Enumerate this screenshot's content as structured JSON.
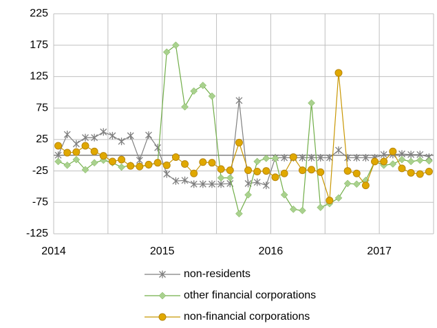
{
  "chart_data": {
    "type": "line",
    "categories": [
      "2014",
      null,
      null,
      null,
      null,
      null,
      null,
      null,
      null,
      null,
      null,
      null,
      "2015",
      null,
      null,
      null,
      null,
      null,
      null,
      null,
      null,
      null,
      null,
      null,
      "2016",
      null,
      null,
      null,
      null,
      null,
      null,
      null,
      null,
      null,
      null,
      null,
      "2017",
      null,
      null,
      null,
      null,
      null
    ],
    "series": [
      {
        "name": "non-residents",
        "color": "#7f7f7f",
        "marker": "star",
        "values": [
          0,
          33,
          18,
          28,
          28,
          37,
          31,
          22,
          31,
          -8,
          32,
          12,
          -30,
          -41,
          -40,
          -46,
          -46,
          -46,
          -46,
          -45,
          87,
          -45,
          -43,
          -48,
          -4,
          -4,
          -4,
          -4,
          -4,
          -4,
          -4,
          8,
          -4,
          -4,
          -4,
          -4,
          1,
          1,
          2,
          1,
          1,
          -3
        ]
      },
      {
        "name": "other financial corporations",
        "color": "#70ad47",
        "marker": "diamond",
        "values": [
          -10,
          -16,
          -7,
          -23,
          -12,
          -8,
          -12,
          -19,
          -16,
          -18,
          -16,
          -12,
          164,
          175,
          77,
          102,
          111,
          94,
          -36,
          -36,
          -93,
          -63,
          -10,
          -5,
          -5,
          -63,
          -86,
          -88,
          83,
          -83,
          -77,
          -68,
          -45,
          -46,
          -40,
          -10,
          -16,
          -14,
          -7,
          -10,
          -8,
          -9
        ]
      },
      {
        "name": "non-financial corporations",
        "color": "#c89600",
        "marker": "circle",
        "values": [
          15,
          4,
          5,
          15,
          6,
          -1,
          -10,
          -7,
          -17,
          -18,
          -15,
          -12,
          -16,
          -3,
          -14,
          -29,
          -11,
          -12,
          -22,
          -24,
          20,
          -24,
          -26,
          -25,
          -35,
          -29,
          -3,
          -24,
          -23,
          -27,
          -72,
          131,
          -25,
          -29,
          -48,
          -10,
          -10,
          6,
          -21,
          -28,
          -30,
          -26
        ]
      }
    ],
    "ylim": [
      -125,
      225
    ],
    "yticks": [
      -125,
      -75,
      -25,
      25,
      75,
      125,
      175,
      225
    ],
    "grid": true,
    "legend": "bottom"
  }
}
